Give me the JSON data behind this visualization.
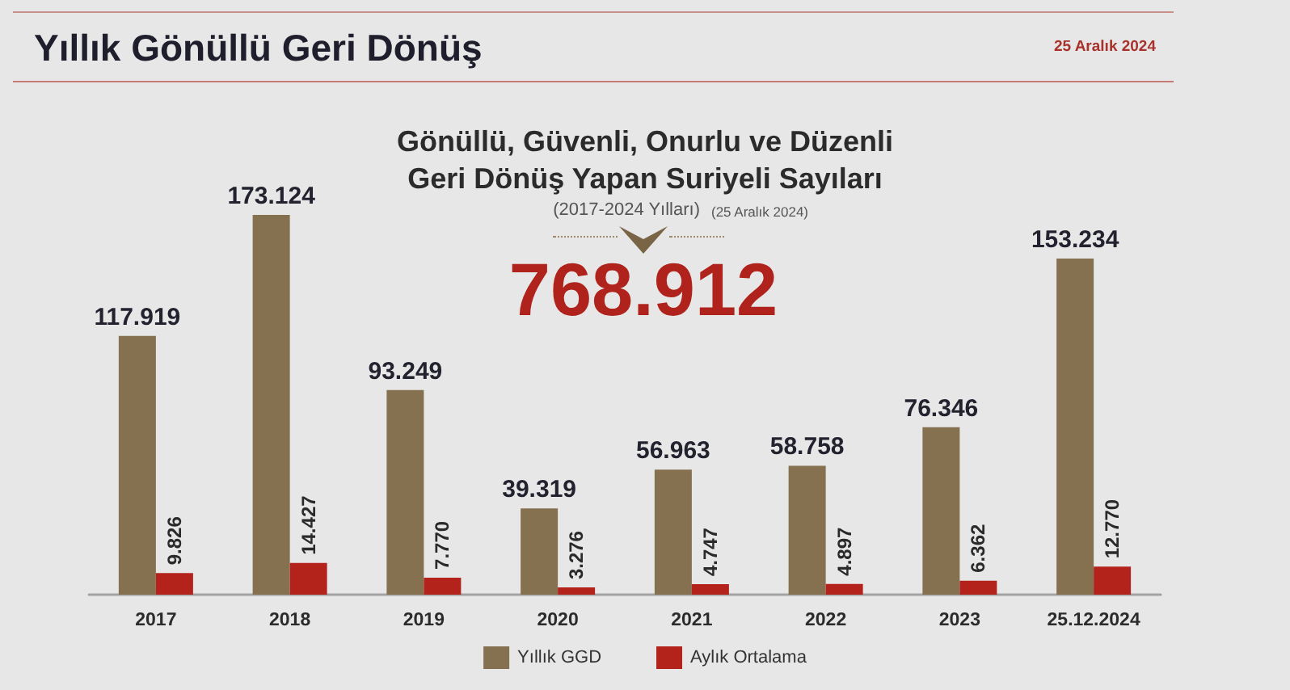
{
  "chart_data": {
    "type": "bar",
    "title": "Yıllık Gönüllü Geri Dönüş",
    "subtitle": "Gönüllü, Güvenli, Onurlu ve Düzenli Geri Dönüş Yapan Suriyeli Sayıları",
    "annotations": [
      "25 Aralık 2024",
      "(2017-2024 Yılları)",
      "(25 Aralık 2024)",
      "768.912"
    ],
    "categories": [
      "2017",
      "2018",
      "2019",
      "2020",
      "2021",
      "2022",
      "2023",
      "25.12.2024"
    ],
    "series": [
      {
        "name": "Yıllık GGD",
        "color": "#85714f",
        "values": [
          117919,
          173124,
          93249,
          39319,
          56963,
          58758,
          76346,
          153234
        ],
        "value_labels": [
          "117.919",
          "173.124",
          "93.249",
          "39.319",
          "56.963",
          "58.758",
          "76.346",
          "153.234"
        ]
      },
      {
        "name": "Aylık Ortalama",
        "color": "#b3231c",
        "values": [
          9826,
          14427,
          7770,
          3276,
          4747,
          4897,
          6362,
          12770
        ],
        "value_labels": [
          "9.826",
          "14.427",
          "7.770",
          "3.276",
          "4.747",
          "4.897",
          "6.362",
          "12.770"
        ]
      }
    ],
    "legend": "bottom",
    "grid": false
  }
}
